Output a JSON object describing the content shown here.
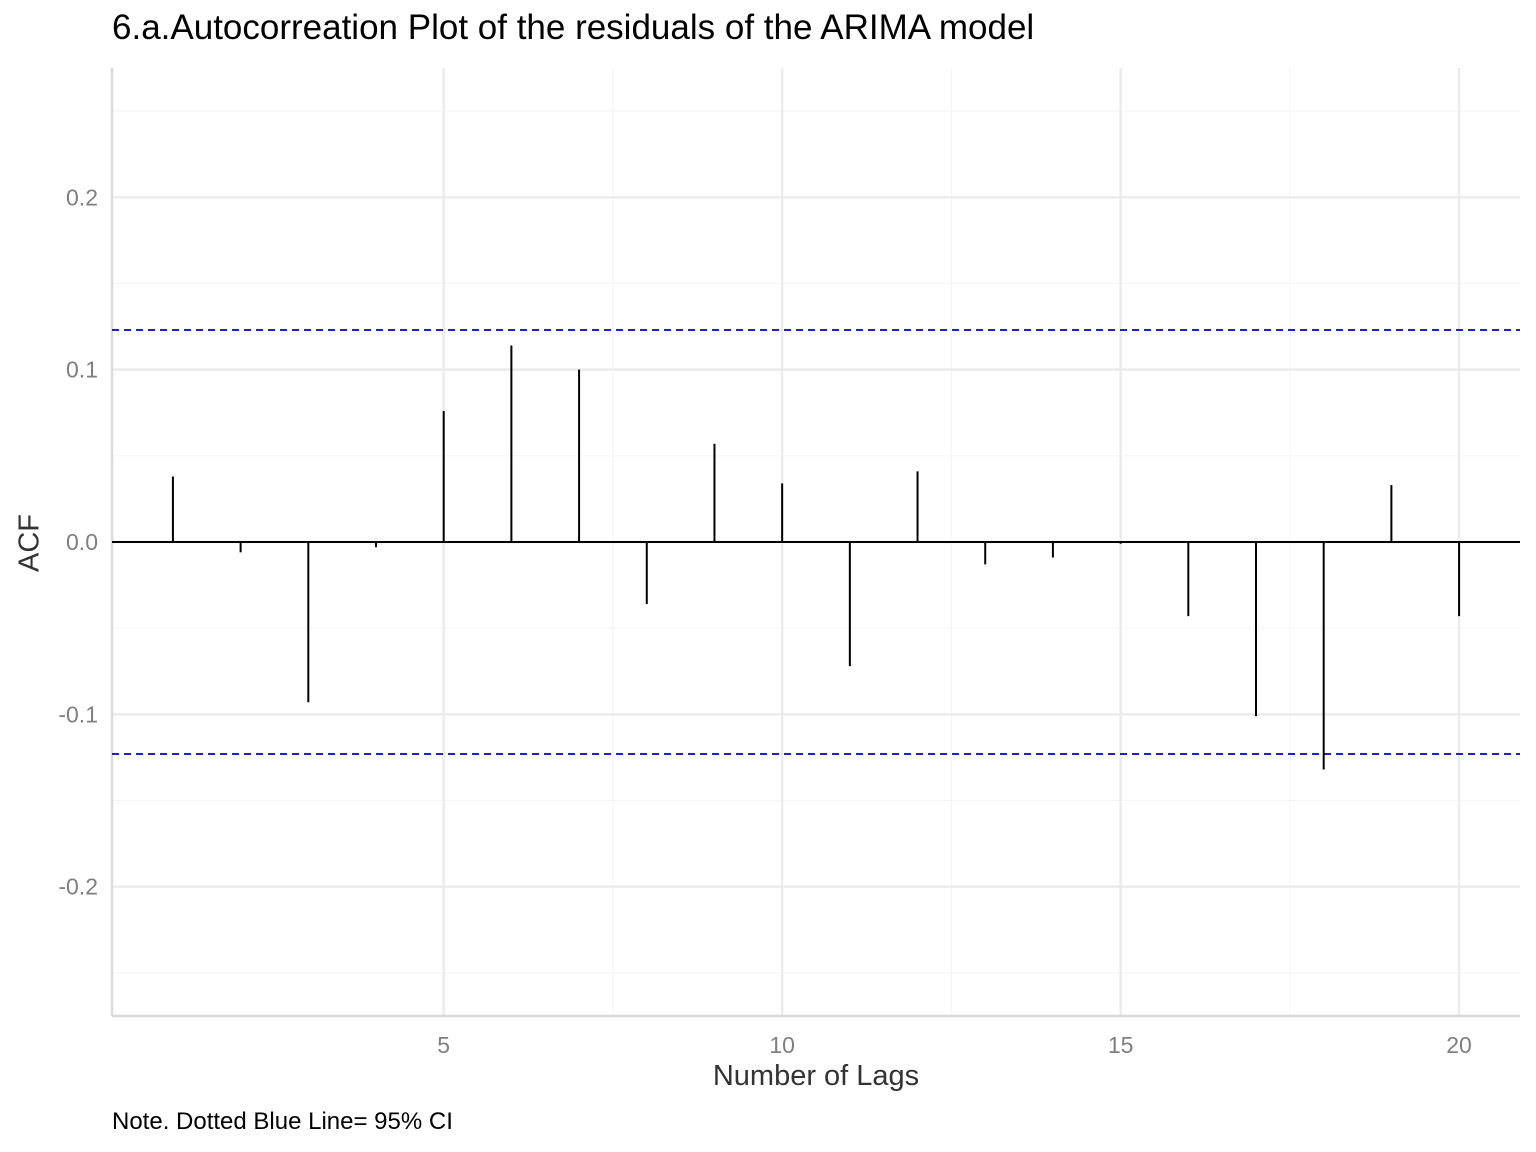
{
  "chart_data": {
    "type": "bar",
    "title": "6.a.Autocorreation Plot of the residuals of the ARIMA model",
    "xlabel": "Number of Lags",
    "ylabel": "ACF",
    "caption": "Note. Dotted Blue Line= 95% CI",
    "xlim": [
      0.1,
      20.9
    ],
    "ylim": [
      -0.275,
      0.275
    ],
    "x_ticks": [
      5,
      10,
      15,
      20
    ],
    "y_ticks": [
      -0.2,
      -0.1,
      0.0,
      0.1,
      0.2
    ],
    "y_tick_labels": [
      "-0.2",
      "-0.1",
      "0.0",
      "0.1",
      "0.2"
    ],
    "lags": [
      1,
      2,
      3,
      4,
      5,
      6,
      7,
      8,
      9,
      10,
      11,
      12,
      13,
      14,
      15,
      16,
      17,
      18,
      19,
      20
    ],
    "values": [
      0.038,
      -0.006,
      -0.093,
      -0.003,
      0.076,
      0.114,
      0.1,
      -0.036,
      0.057,
      0.034,
      -0.072,
      0.041,
      -0.013,
      -0.009,
      -0.001,
      -0.043,
      -0.101,
      -0.132,
      0.033,
      -0.043
    ],
    "confidence_bounds": [
      0.123,
      -0.123
    ],
    "grid": true,
    "colors": {
      "bars": "#000000",
      "ci_line": "#0000cc",
      "grid_major": "#ebebeb",
      "grid_minor": "#f5f5f5",
      "axis": "#d9d9d9",
      "tick_text": "#7f7f7f"
    }
  }
}
